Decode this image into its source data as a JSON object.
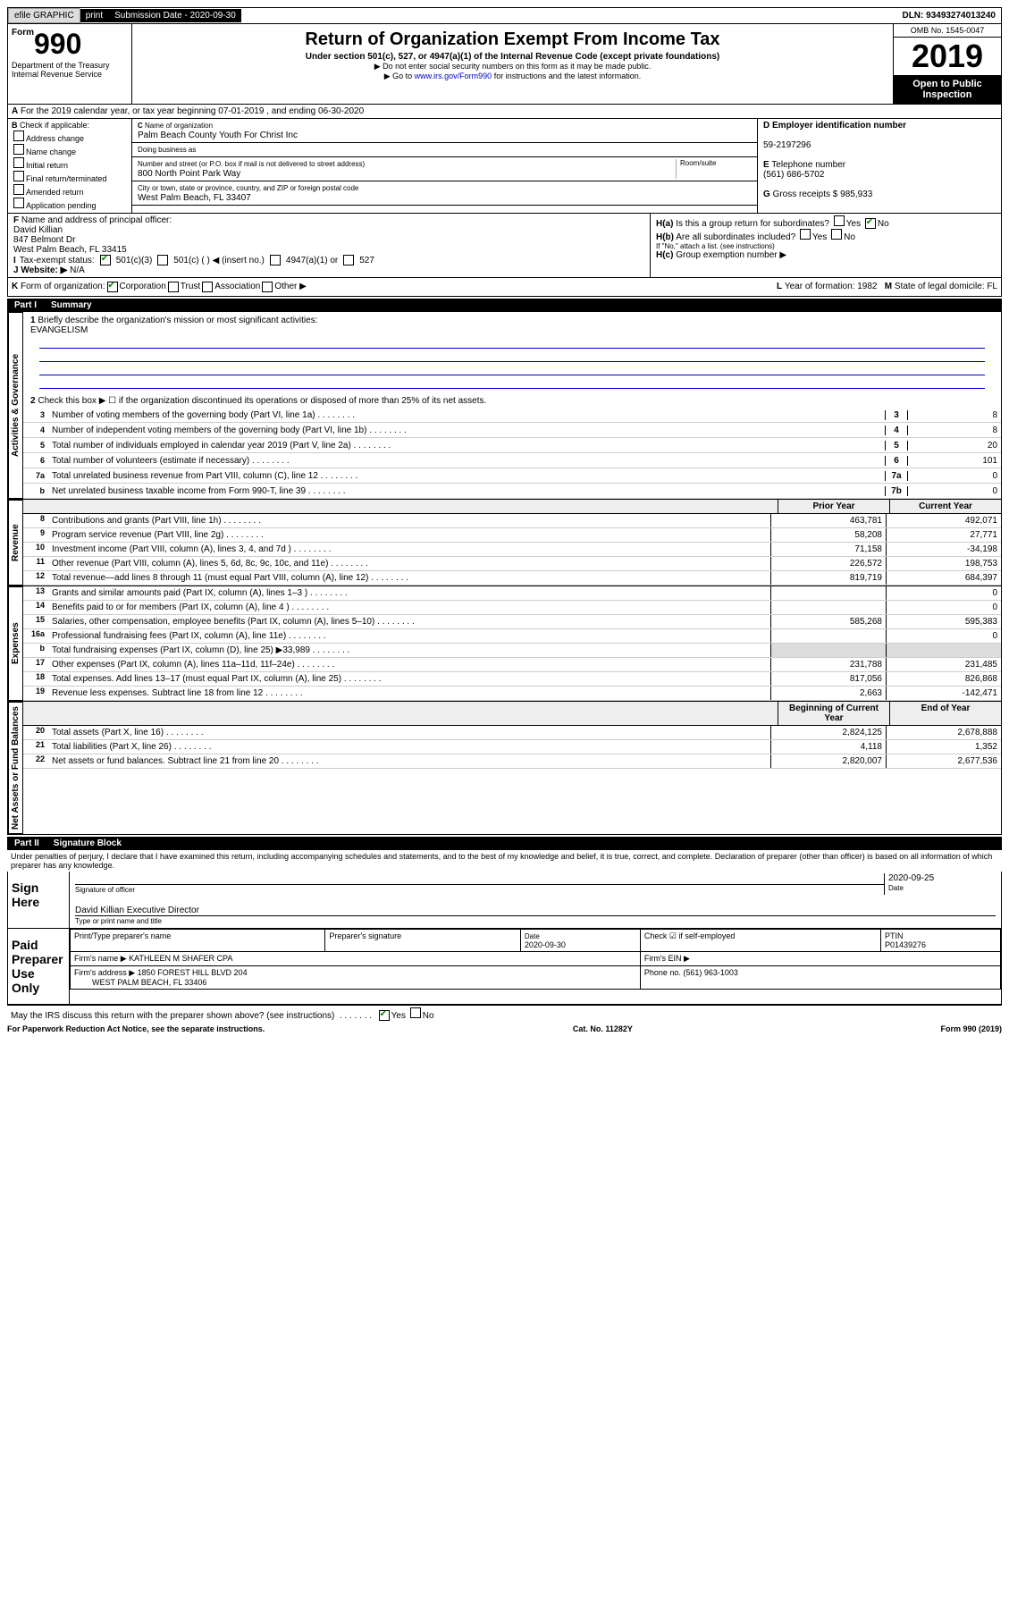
{
  "topbar": {
    "efile": "efile GRAPHIC",
    "print": "print",
    "subdate_label": "Submission Date - 2020-09-30",
    "dln": "DLN: 93493274013240"
  },
  "header": {
    "form_prefix": "Form",
    "form_num": "990",
    "title": "Return of Organization Exempt From Income Tax",
    "subtitle": "Under section 501(c), 527, or 4947(a)(1) of the Internal Revenue Code (except private foundations)",
    "note1": "▶ Do not enter social security numbers on this form as it may be made public.",
    "note2_prefix": "▶ Go to ",
    "note2_link": "www.irs.gov/Form990",
    "note2_suffix": " for instructions and the latest information.",
    "dept1": "Department of the Treasury",
    "dept2": "Internal Revenue Service",
    "omb": "OMB No. 1545-0047",
    "year": "2019",
    "open": "Open to Public Inspection"
  },
  "row_a": "For the 2019 calendar year, or tax year beginning 07-01-2019    , and ending 06-30-2020",
  "section_b": {
    "heading": "Check if applicable:",
    "opts": [
      "Address change",
      "Name change",
      "Initial return",
      "Final return/terminated",
      "Amended return",
      "Application pending"
    ]
  },
  "section_c": {
    "name_label": "Name of organization",
    "name": "Palm Beach County Youth For Christ Inc",
    "dba_label": "Doing business as",
    "street_label": "Number and street (or P.O. box if mail is not delivered to street address)",
    "street": "800 North Point Park Way",
    "room_label": "Room/suite",
    "city_label": "City or town, state or province, country, and ZIP or foreign postal code",
    "city": "West Palm Beach, FL  33407"
  },
  "section_d": {
    "ein_label": "Employer identification number",
    "ein": "59-2197296",
    "tel_label": "Telephone number",
    "tel": "(561) 686-5702",
    "gross_label": "Gross receipts $",
    "gross": "985,933"
  },
  "section_f": {
    "label": "Name and address of principal officer:",
    "name": "David Killian",
    "addr1": "847 Belmont Dr",
    "addr2": "West Palm Beach, FL  33415"
  },
  "section_h": {
    "ha": "Is this a group return for subordinates?",
    "hb": "Are all subordinates included?",
    "hb_note": "If \"No,\" attach a list. (see instructions)",
    "hc": "Group exemption number ▶"
  },
  "tax_exempt": {
    "label": "Tax-exempt status:",
    "c3": "501(c)(3)",
    "cn": "501(c) (   ) ◀ (insert no.)",
    "a1": "4947(a)(1) or",
    "s527": "527"
  },
  "website": {
    "label": "Website: ▶",
    "value": "N/A"
  },
  "row_k": {
    "label": "Form of organization:",
    "opts": [
      "Corporation",
      "Trust",
      "Association",
      "Other ▶"
    ]
  },
  "row_l": {
    "label": "Year of formation:",
    "value": "1982"
  },
  "row_m": {
    "label": "State of legal domicile:",
    "value": "FL"
  },
  "part1": {
    "title": "Part I",
    "name": "Summary",
    "q1": "Briefly describe the organization's mission or most significant activities:",
    "mission": "EVANGELISM",
    "q2": "Check this box ▶ ☐  if the organization discontinued its operations or disposed of more than 25% of its net assets.",
    "sections": {
      "gov": "Activities & Governance",
      "rev": "Revenue",
      "exp": "Expenses",
      "net": "Net Assets or Fund Balances"
    },
    "lines_single": [
      {
        "n": "3",
        "d": "Number of voting members of the governing body (Part VI, line 1a)",
        "b": "3",
        "v": "8"
      },
      {
        "n": "4",
        "d": "Number of independent voting members of the governing body (Part VI, line 1b)",
        "b": "4",
        "v": "8"
      },
      {
        "n": "5",
        "d": "Total number of individuals employed in calendar year 2019 (Part V, line 2a)",
        "b": "5",
        "v": "20"
      },
      {
        "n": "6",
        "d": "Total number of volunteers (estimate if necessary)",
        "b": "6",
        "v": "101"
      },
      {
        "n": "7a",
        "d": "Total unrelated business revenue from Part VIII, column (C), line 12",
        "b": "7a",
        "v": "0"
      },
      {
        "n": "b",
        "d": "Net unrelated business taxable income from Form 990-T, line 39",
        "b": "7b",
        "v": "0"
      }
    ],
    "col_headers": {
      "py": "Prior Year",
      "cy": "Current Year"
    },
    "rev_lines": [
      {
        "n": "8",
        "d": "Contributions and grants (Part VIII, line 1h)",
        "v1": "463,781",
        "v2": "492,071"
      },
      {
        "n": "9",
        "d": "Program service revenue (Part VIII, line 2g)",
        "v1": "58,208",
        "v2": "27,771"
      },
      {
        "n": "10",
        "d": "Investment income (Part VIII, column (A), lines 3, 4, and 7d )",
        "v1": "71,158",
        "v2": "-34,198"
      },
      {
        "n": "11",
        "d": "Other revenue (Part VIII, column (A), lines 5, 6d, 8c, 9c, 10c, and 11e)",
        "v1": "226,572",
        "v2": "198,753"
      },
      {
        "n": "12",
        "d": "Total revenue—add lines 8 through 11 (must equal Part VIII, column (A), line 12)",
        "v1": "819,719",
        "v2": "684,397"
      }
    ],
    "exp_lines": [
      {
        "n": "13",
        "d": "Grants and similar amounts paid (Part IX, column (A), lines 1–3 )",
        "v1": "",
        "v2": "0"
      },
      {
        "n": "14",
        "d": "Benefits paid to or for members (Part IX, column (A), line 4 )",
        "v1": "",
        "v2": "0"
      },
      {
        "n": "15",
        "d": "Salaries, other compensation, employee benefits (Part IX, column (A), lines 5–10)",
        "v1": "585,268",
        "v2": "595,383"
      },
      {
        "n": "16a",
        "d": "Professional fundraising fees (Part IX, column (A), line 11e)",
        "v1": "",
        "v2": "0"
      },
      {
        "n": "b",
        "d": "Total fundraising expenses (Part IX, column (D), line 25) ▶33,989",
        "v1": "",
        "v2": ""
      },
      {
        "n": "17",
        "d": "Other expenses (Part IX, column (A), lines 11a–11d, 11f–24e)",
        "v1": "231,788",
        "v2": "231,485"
      },
      {
        "n": "18",
        "d": "Total expenses. Add lines 13–17 (must equal Part IX, column (A), line 25)",
        "v1": "817,056",
        "v2": "826,868"
      },
      {
        "n": "19",
        "d": "Revenue less expenses. Subtract line 18 from line 12",
        "v1": "2,663",
        "v2": "-142,471"
      }
    ],
    "net_headers": {
      "py": "Beginning of Current Year",
      "cy": "End of Year"
    },
    "net_lines": [
      {
        "n": "20",
        "d": "Total assets (Part X, line 16)",
        "v1": "2,824,125",
        "v2": "2,678,888"
      },
      {
        "n": "21",
        "d": "Total liabilities (Part X, line 26)",
        "v1": "4,118",
        "v2": "1,352"
      },
      {
        "n": "22",
        "d": "Net assets or fund balances. Subtract line 21 from line 20",
        "v1": "2,820,007",
        "v2": "2,677,536"
      }
    ]
  },
  "part2": {
    "title": "Part II",
    "name": "Signature Block",
    "declaration": "Under penalties of perjury, I declare that I have examined this return, including accompanying schedules and statements, and to the best of my knowledge and belief, it is true, correct, and complete. Declaration of preparer (other than officer) is based on all information of which preparer has any knowledge.",
    "sign_here": "Sign Here",
    "sig_officer": "Signature of officer",
    "sig_date": "2020-09-25",
    "sig_date_label": "Date",
    "officer_name": "David Killian  Executive Director",
    "type_name": "Type or print name and title",
    "paid_prep": "Paid Preparer Use Only",
    "prep_name_label": "Print/Type preparer's name",
    "prep_sig_label": "Preparer's signature",
    "prep_date": "2020-09-30",
    "self_emp": "Check ☑ if self-employed",
    "ptin_label": "PTIN",
    "ptin": "P01439276",
    "firm_name_label": "Firm's name    ▶",
    "firm_name": "KATHLEEN M SHAFER CPA",
    "firm_ein_label": "Firm's EIN ▶",
    "firm_addr_label": "Firm's address ▶",
    "firm_addr": "1850 FOREST HILL BLVD 204",
    "firm_city": "WEST PALM BEACH, FL  33406",
    "firm_phone_label": "Phone no.",
    "firm_phone": "(561) 963-1003",
    "discuss": "May the IRS discuss this return with the preparer shown above? (see instructions)"
  },
  "footer": {
    "pra": "For Paperwork Reduction Act Notice, see the separate instructions.",
    "cat": "Cat. No. 11282Y",
    "form": "Form 990 (2019)"
  },
  "labels": {
    "yes": "Yes",
    "no": "No",
    "b": "B",
    "c": "C",
    "d": "D",
    "e": "E",
    "f": "F",
    "g": "G",
    "ha": "H(a)",
    "hb": "H(b)",
    "hc": "H(c)",
    "i": "I",
    "j": "J",
    "k": "K",
    "l": "L",
    "m": "M",
    "a": "A"
  }
}
